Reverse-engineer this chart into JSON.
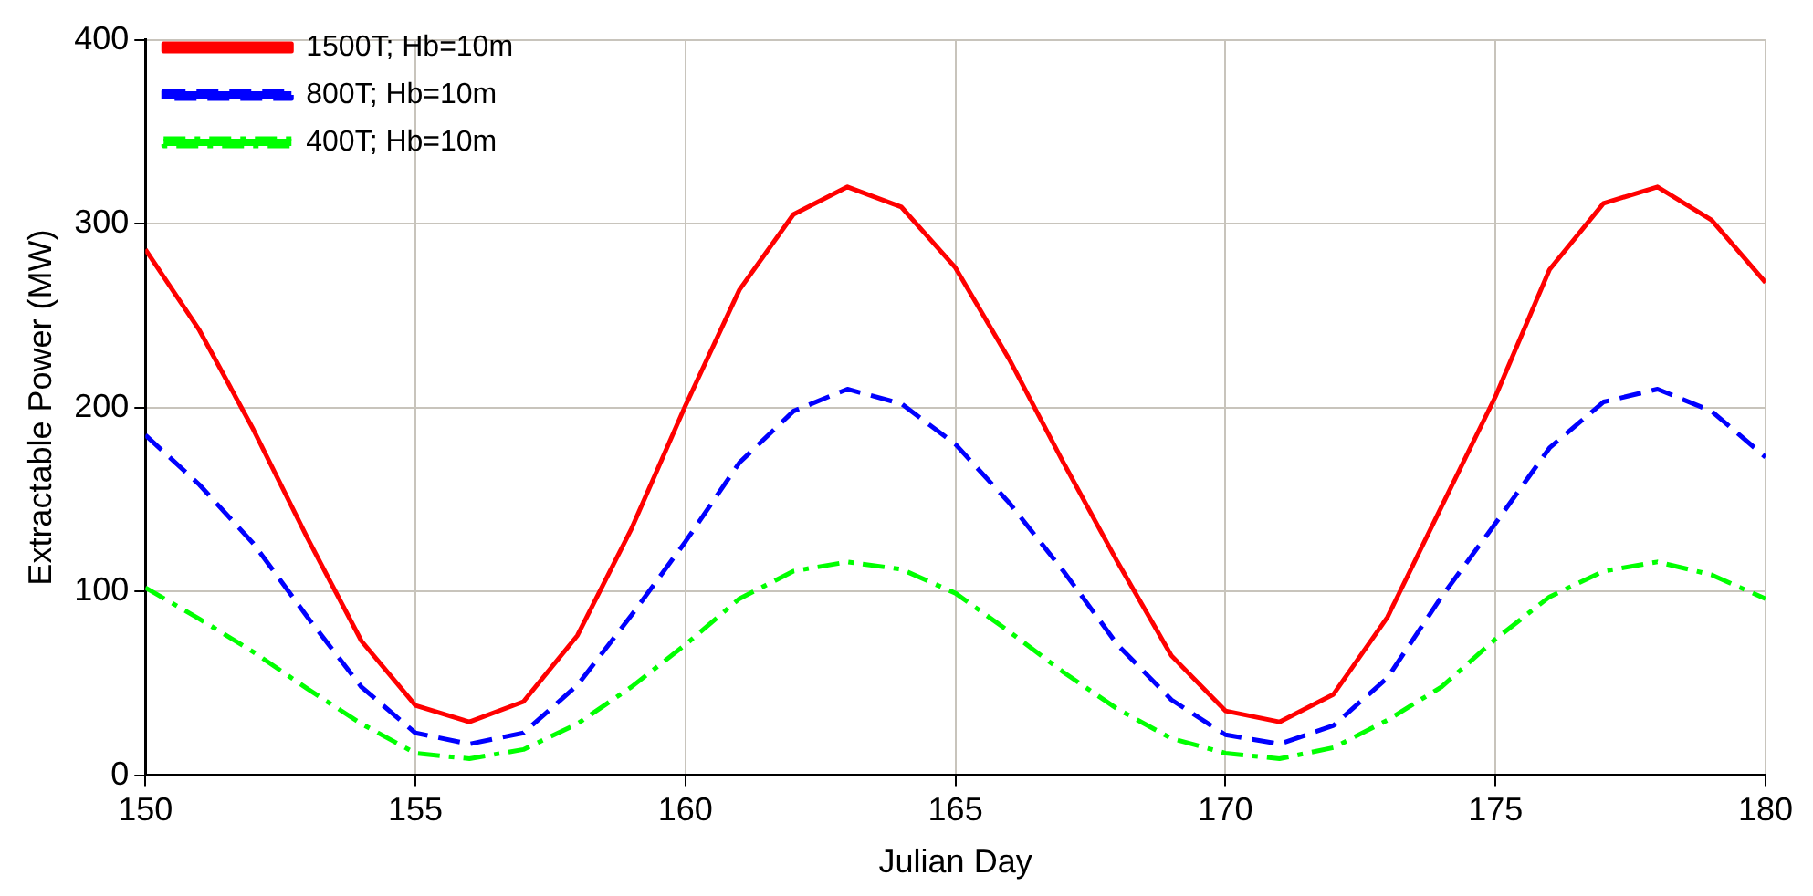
{
  "chart_data": {
    "type": "line",
    "xlabel": "Julian Day",
    "ylabel": "Extractable Power (MW)",
    "x": [
      150,
      151,
      152,
      153,
      154,
      155,
      156,
      157,
      158,
      159,
      160,
      161,
      162,
      163,
      164,
      165,
      166,
      167,
      168,
      169,
      170,
      171,
      172,
      173,
      174,
      175,
      176,
      177,
      178,
      179,
      180
    ],
    "series": [
      {
        "name": "1500T; Hb=10m",
        "color": "#ff0000",
        "line_style": "solid",
        "values": [
          286,
          242,
          188,
          129,
          73,
          38,
          29,
          40,
          76,
          134,
          201,
          264,
          305,
          320,
          309,
          276,
          226,
          170,
          116,
          65,
          35,
          29,
          44,
          86,
          146,
          206,
          275,
          311,
          320,
          302,
          268
        ]
      },
      {
        "name": "800T; Hb=10m",
        "color": "#0000ff",
        "line_style": "dashed",
        "values": [
          185,
          158,
          126,
          86,
          48,
          23,
          17,
          23,
          49,
          87,
          127,
          170,
          198,
          210,
          202,
          180,
          148,
          111,
          71,
          41,
          22,
          17,
          27,
          53,
          97,
          137,
          178,
          203,
          210,
          198,
          173
        ]
      },
      {
        "name": "400T; Hb=10m",
        "color": "#00ff00",
        "line_style": "dashdot",
        "values": [
          102,
          85,
          67,
          47,
          28,
          12,
          9,
          14,
          28,
          48,
          71,
          96,
          111,
          116,
          112,
          99,
          78,
          56,
          36,
          20,
          12,
          9,
          15,
          30,
          48,
          74,
          97,
          111,
          116,
          109,
          96
        ]
      }
    ],
    "xlim": [
      150,
      180
    ],
    "xticks": [
      150,
      155,
      160,
      165,
      170,
      175,
      180
    ],
    "ylim": [
      0,
      400
    ],
    "yticks": [
      0,
      100,
      200,
      300,
      400
    ],
    "grid": true,
    "legend": "top left",
    "marker": "none"
  }
}
